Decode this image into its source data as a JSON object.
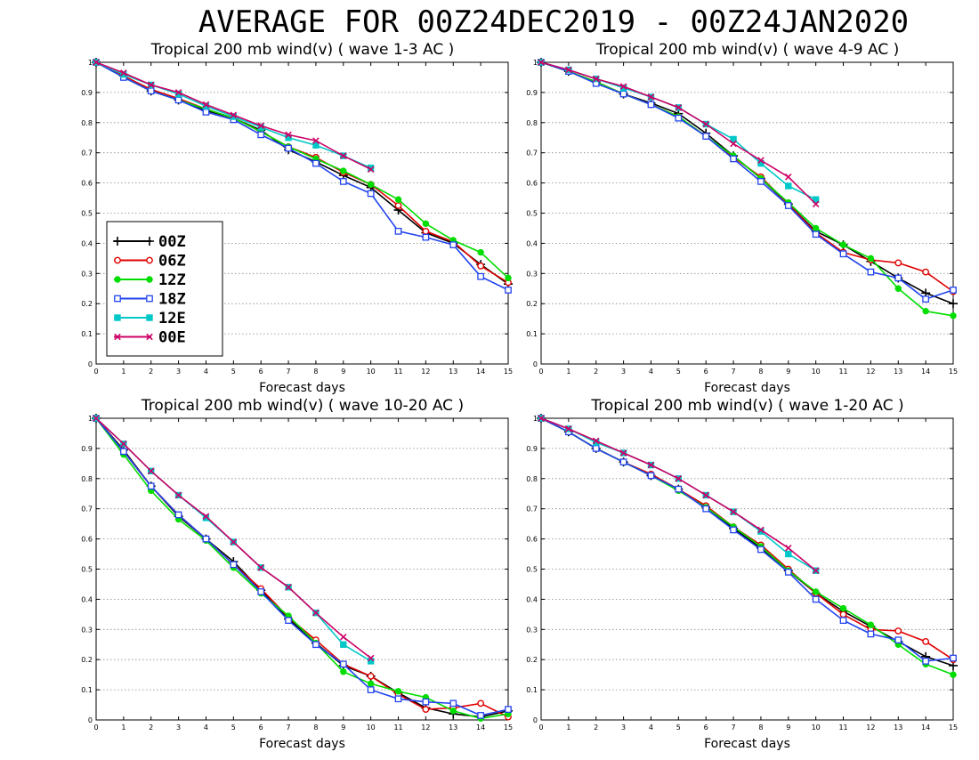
{
  "page": {
    "title": "AVERAGE FOR 00Z24DEC2019 - 00Z24JAN2020"
  },
  "series_styles": [
    {
      "name": "00Z",
      "color": "#000000",
      "marker": "plus"
    },
    {
      "name": "06Z",
      "color": "#e00000",
      "marker": "circle"
    },
    {
      "name": "12Z",
      "color": "#00dd00",
      "marker": "dot"
    },
    {
      "name": "18Z",
      "color": "#2244ee",
      "marker": "square"
    },
    {
      "name": "12E",
      "color": "#00c8c8",
      "marker": "filled-square"
    },
    {
      "name": "00E",
      "color": "#cc0066",
      "marker": "x"
    }
  ],
  "chart_data": [
    {
      "type": "line",
      "title": "Tropical 200 mb wind(v) ( wave 1-3 AC )",
      "xlabel": "Forecast days",
      "xlim": [
        0,
        15
      ],
      "ylim": [
        0,
        1
      ],
      "xticks": [
        "0",
        "1",
        "2",
        "3",
        "4",
        "5",
        "6",
        "7",
        "8",
        "9",
        "10",
        "11",
        "12",
        "13",
        "14",
        "15"
      ],
      "yticks": [
        "0",
        "0.1",
        "0.2",
        "0.3",
        "0.4",
        "0.5",
        "0.6",
        "0.7",
        "0.8",
        "0.9",
        "1"
      ],
      "grid": "horizontal-dotted",
      "legend": "lower-left",
      "series": [
        {
          "name": "00Z",
          "x": [
            0,
            1,
            2,
            3,
            4,
            5,
            6,
            7,
            8,
            9,
            10,
            11,
            12,
            13,
            14,
            15
          ],
          "values": [
            1,
            0.955,
            0.905,
            0.875,
            0.84,
            0.815,
            0.775,
            0.71,
            0.67,
            0.625,
            0.585,
            0.51,
            0.435,
            0.4,
            0.33,
            0.265
          ]
        },
        {
          "name": "06Z",
          "x": [
            0,
            1,
            2,
            3,
            4,
            5,
            6,
            7,
            8,
            9,
            10,
            11,
            12,
            13,
            14,
            15
          ],
          "values": [
            1,
            0.955,
            0.91,
            0.88,
            0.845,
            0.815,
            0.77,
            0.72,
            0.685,
            0.635,
            0.595,
            0.525,
            0.44,
            0.405,
            0.325,
            0.27
          ]
        },
        {
          "name": "12Z",
          "x": [
            0,
            1,
            2,
            3,
            4,
            5,
            6,
            7,
            8,
            9,
            10,
            11,
            12,
            13,
            14,
            15
          ],
          "values": [
            1,
            0.95,
            0.905,
            0.875,
            0.845,
            0.815,
            0.77,
            0.72,
            0.68,
            0.64,
            0.595,
            0.545,
            0.465,
            0.41,
            0.37,
            0.285
          ]
        },
        {
          "name": "18Z",
          "x": [
            0,
            1,
            2,
            3,
            4,
            5,
            6,
            7,
            8,
            9,
            10,
            11,
            12,
            13,
            14,
            15
          ],
          "values": [
            1,
            0.95,
            0.905,
            0.875,
            0.835,
            0.81,
            0.76,
            0.715,
            0.665,
            0.605,
            0.565,
            0.44,
            0.42,
            0.395,
            0.29,
            0.245
          ]
        },
        {
          "name": "12E",
          "x": [
            0,
            1,
            2,
            3,
            4,
            5,
            6,
            7,
            8,
            9,
            10
          ],
          "values": [
            1,
            0.96,
            0.925,
            0.895,
            0.855,
            0.82,
            0.785,
            0.75,
            0.725,
            0.69,
            0.65
          ]
        },
        {
          "name": "00E",
          "x": [
            0,
            1,
            2,
            3,
            4,
            5,
            6,
            7,
            8,
            9,
            10
          ],
          "values": [
            1,
            0.965,
            0.925,
            0.9,
            0.86,
            0.825,
            0.79,
            0.76,
            0.74,
            0.69,
            0.645
          ]
        }
      ]
    },
    {
      "type": "line",
      "title": "Tropical 200 mb wind(v) ( wave 4-9 AC )",
      "xlabel": "Forecast days",
      "xlim": [
        0,
        15
      ],
      "ylim": [
        0,
        1
      ],
      "xticks": [
        "0",
        "1",
        "2",
        "3",
        "4",
        "5",
        "6",
        "7",
        "8",
        "9",
        "10",
        "11",
        "12",
        "13",
        "14",
        "15"
      ],
      "yticks": [
        "0",
        "0.1",
        "0.2",
        "0.3",
        "0.4",
        "0.5",
        "0.6",
        "0.7",
        "0.8",
        "0.9",
        "1"
      ],
      "grid": "horizontal-dotted",
      "series": [
        {
          "name": "00Z",
          "x": [
            0,
            1,
            2,
            3,
            4,
            5,
            6,
            7,
            8,
            9,
            10,
            11,
            12,
            13,
            14,
            15
          ],
          "values": [
            1,
            0.97,
            0.935,
            0.895,
            0.865,
            0.83,
            0.765,
            0.69,
            0.615,
            0.53,
            0.44,
            0.395,
            0.34,
            0.285,
            0.235,
            0.2
          ]
        },
        {
          "name": "06Z",
          "x": [
            0,
            1,
            2,
            3,
            4,
            5,
            6,
            7,
            8,
            9,
            10,
            11,
            12,
            13,
            14,
            15
          ],
          "values": [
            1,
            0.97,
            0.935,
            0.895,
            0.86,
            0.82,
            0.755,
            0.685,
            0.62,
            0.53,
            0.435,
            0.37,
            0.345,
            0.335,
            0.305,
            0.24
          ]
        },
        {
          "name": "12Z",
          "x": [
            0,
            1,
            2,
            3,
            4,
            5,
            6,
            7,
            8,
            9,
            10,
            11,
            12,
            13,
            14,
            15
          ],
          "values": [
            1,
            0.97,
            0.935,
            0.895,
            0.86,
            0.82,
            0.755,
            0.69,
            0.615,
            0.535,
            0.45,
            0.395,
            0.35,
            0.25,
            0.175,
            0.16
          ]
        },
        {
          "name": "18Z",
          "x": [
            0,
            1,
            2,
            3,
            4,
            5,
            6,
            7,
            8,
            9,
            10,
            11,
            12,
            13,
            14,
            15
          ],
          "values": [
            1,
            0.97,
            0.93,
            0.895,
            0.86,
            0.815,
            0.755,
            0.68,
            0.605,
            0.525,
            0.43,
            0.365,
            0.305,
            0.285,
            0.215,
            0.245
          ]
        },
        {
          "name": "12E",
          "x": [
            0,
            1,
            2,
            3,
            4,
            5,
            6,
            7,
            8,
            9,
            10
          ],
          "values": [
            1,
            0.975,
            0.945,
            0.915,
            0.885,
            0.85,
            0.795,
            0.745,
            0.665,
            0.59,
            0.545
          ]
        },
        {
          "name": "00E",
          "x": [
            0,
            1,
            2,
            3,
            4,
            5,
            6,
            7,
            8,
            9,
            10
          ],
          "values": [
            1,
            0.975,
            0.945,
            0.92,
            0.885,
            0.85,
            0.795,
            0.73,
            0.675,
            0.62,
            0.53
          ]
        }
      ]
    },
    {
      "type": "line",
      "title": "Tropical 200 mb wind(v) ( wave 10-20 AC )",
      "xlabel": "Forecast days",
      "xlim": [
        0,
        15
      ],
      "ylim": [
        0,
        1
      ],
      "xticks": [
        "0",
        "1",
        "2",
        "3",
        "4",
        "5",
        "6",
        "7",
        "8",
        "9",
        "10",
        "11",
        "12",
        "13",
        "14",
        "15"
      ],
      "yticks": [
        "0",
        "0.1",
        "0.2",
        "0.3",
        "0.4",
        "0.5",
        "0.6",
        "0.7",
        "0.8",
        "0.9",
        "1"
      ],
      "grid": "horizontal-dotted",
      "series": [
        {
          "name": "00Z",
          "x": [
            0,
            1,
            2,
            3,
            4,
            5,
            6,
            7,
            8,
            9,
            10,
            11,
            12,
            13,
            14,
            15
          ],
          "values": [
            1,
            0.895,
            0.775,
            0.675,
            0.6,
            0.525,
            0.43,
            0.335,
            0.255,
            0.18,
            0.145,
            0.09,
            0.04,
            0.02,
            0.01,
            0.03
          ]
        },
        {
          "name": "06Z",
          "x": [
            0,
            1,
            2,
            3,
            4,
            5,
            6,
            7,
            8,
            9,
            10,
            11,
            12,
            13,
            14,
            15
          ],
          "values": [
            1,
            0.89,
            0.775,
            0.68,
            0.6,
            0.515,
            0.435,
            0.34,
            0.265,
            0.185,
            0.145,
            0.085,
            0.035,
            0.04,
            0.055,
            0.01
          ]
        },
        {
          "name": "12Z",
          "x": [
            0,
            1,
            2,
            3,
            4,
            5,
            6,
            7,
            8,
            9,
            10,
            11,
            12,
            13,
            14,
            15
          ],
          "values": [
            1,
            0.88,
            0.76,
            0.665,
            0.595,
            0.505,
            0.42,
            0.345,
            0.255,
            0.16,
            0.12,
            0.095,
            0.075,
            0.03,
            0.005,
            0.02
          ]
        },
        {
          "name": "18Z",
          "x": [
            0,
            1,
            2,
            3,
            4,
            5,
            6,
            7,
            8,
            9,
            10,
            11,
            12,
            13,
            14,
            15
          ],
          "values": [
            1,
            0.89,
            0.775,
            0.68,
            0.6,
            0.515,
            0.425,
            0.33,
            0.25,
            0.185,
            0.1,
            0.07,
            0.06,
            0.055,
            0.015,
            0.035
          ]
        },
        {
          "name": "12E",
          "x": [
            0,
            1,
            2,
            3,
            4,
            5,
            6,
            7,
            8,
            9,
            10
          ],
          "values": [
            1,
            0.915,
            0.825,
            0.745,
            0.67,
            0.59,
            0.505,
            0.44,
            0.355,
            0.25,
            0.195
          ]
        },
        {
          "name": "00E",
          "x": [
            0,
            1,
            2,
            3,
            4,
            5,
            6,
            7,
            8,
            9,
            10
          ],
          "values": [
            1,
            0.915,
            0.825,
            0.745,
            0.675,
            0.59,
            0.505,
            0.44,
            0.355,
            0.275,
            0.205
          ]
        }
      ]
    },
    {
      "type": "line",
      "title": "Tropical 200 mb wind(v) ( wave 1-20 AC )",
      "xlabel": "Forecast days",
      "xlim": [
        0,
        15
      ],
      "ylim": [
        0,
        1
      ],
      "xticks": [
        "0",
        "1",
        "2",
        "3",
        "4",
        "5",
        "6",
        "7",
        "8",
        "9",
        "10",
        "11",
        "12",
        "13",
        "14",
        "15"
      ],
      "yticks": [
        "0",
        "0.1",
        "0.2",
        "0.3",
        "0.4",
        "0.5",
        "0.6",
        "0.7",
        "0.8",
        "0.9",
        "1"
      ],
      "grid": "horizontal-dotted",
      "series": [
        {
          "name": "00Z",
          "x": [
            0,
            1,
            2,
            3,
            4,
            5,
            6,
            7,
            8,
            9,
            10,
            11,
            12,
            13,
            14,
            15
          ],
          "values": [
            1,
            0.955,
            0.9,
            0.855,
            0.81,
            0.765,
            0.705,
            0.635,
            0.57,
            0.495,
            0.42,
            0.36,
            0.31,
            0.26,
            0.21,
            0.18
          ]
        },
        {
          "name": "06Z",
          "x": [
            0,
            1,
            2,
            3,
            4,
            5,
            6,
            7,
            8,
            9,
            10,
            11,
            12,
            13,
            14,
            15
          ],
          "values": [
            1,
            0.955,
            0.9,
            0.855,
            0.815,
            0.765,
            0.71,
            0.64,
            0.58,
            0.5,
            0.42,
            0.35,
            0.3,
            0.295,
            0.26,
            0.2
          ]
        },
        {
          "name": "12Z",
          "x": [
            0,
            1,
            2,
            3,
            4,
            5,
            6,
            7,
            8,
            9,
            10,
            11,
            12,
            13,
            14,
            15
          ],
          "values": [
            1,
            0.955,
            0.9,
            0.855,
            0.81,
            0.76,
            0.705,
            0.64,
            0.575,
            0.495,
            0.425,
            0.37,
            0.315,
            0.25,
            0.185,
            0.15
          ]
        },
        {
          "name": "18Z",
          "x": [
            0,
            1,
            2,
            3,
            4,
            5,
            6,
            7,
            8,
            9,
            10,
            11,
            12,
            13,
            14,
            15
          ],
          "values": [
            1,
            0.955,
            0.9,
            0.855,
            0.81,
            0.765,
            0.7,
            0.63,
            0.565,
            0.49,
            0.4,
            0.33,
            0.285,
            0.265,
            0.195,
            0.205
          ]
        },
        {
          "name": "12E",
          "x": [
            0,
            1,
            2,
            3,
            4,
            5,
            6,
            7,
            8,
            9,
            10
          ],
          "values": [
            1,
            0.965,
            0.92,
            0.885,
            0.845,
            0.8,
            0.745,
            0.69,
            0.625,
            0.55,
            0.495
          ]
        },
        {
          "name": "00E",
          "x": [
            0,
            1,
            2,
            3,
            4,
            5,
            6,
            7,
            8,
            9,
            10
          ],
          "values": [
            1,
            0.965,
            0.925,
            0.885,
            0.845,
            0.8,
            0.745,
            0.69,
            0.63,
            0.57,
            0.495
          ]
        }
      ]
    }
  ]
}
